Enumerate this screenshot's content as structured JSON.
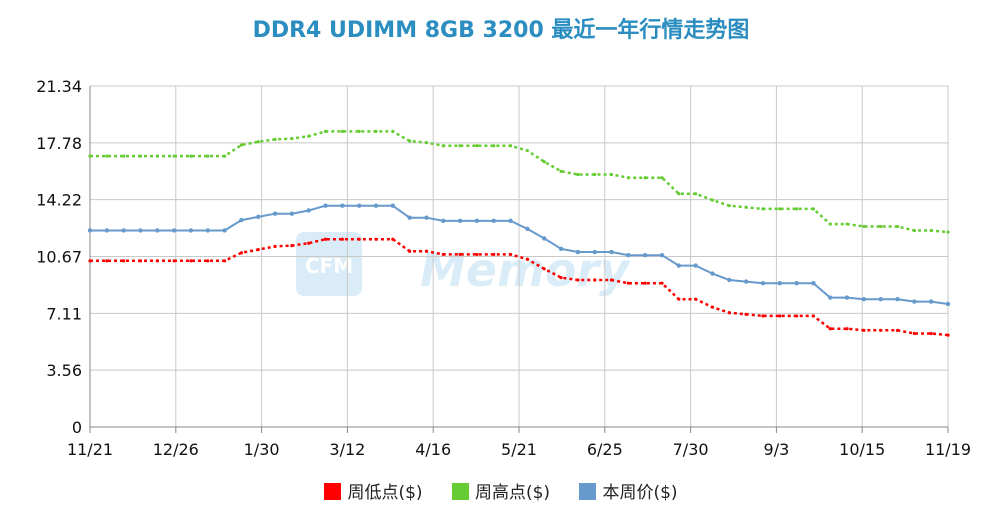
{
  "chart_data": {
    "type": "line",
    "title": "DDR4 UDIMM 8GB 3200 最近一年行情走势图",
    "xlabel": "",
    "ylabel": "",
    "ylim": [
      0,
      21.34
    ],
    "yticks": [
      "0",
      "3.56",
      "7.11",
      "10.67",
      "14.22",
      "17.78",
      "21.34"
    ],
    "xticks": [
      "11/21",
      "12/26",
      "1/30",
      "3/12",
      "4/16",
      "5/21",
      "6/25",
      "7/30",
      "9/3",
      "10/15",
      "11/19"
    ],
    "grid": true,
    "legend_position": "bottom",
    "watermark": "CFM Memory",
    "series": [
      {
        "name": "周低点($)",
        "color": "#ff0000",
        "style": "dotted",
        "values": [
          10.4,
          10.4,
          10.4,
          10.4,
          10.4,
          10.4,
          10.4,
          10.4,
          10.4,
          10.9,
          11.1,
          11.3,
          11.35,
          11.5,
          11.75,
          11.75,
          11.75,
          11.75,
          11.75,
          11.0,
          11.0,
          10.8,
          10.8,
          10.8,
          10.8,
          10.8,
          10.5,
          9.9,
          9.35,
          9.2,
          9.2,
          9.2,
          9.0,
          9.0,
          9.0,
          8.0,
          8.0,
          7.5,
          7.15,
          7.05,
          6.95,
          6.95,
          6.95,
          6.95,
          6.15,
          6.15,
          6.05,
          6.05,
          6.05,
          5.85,
          5.85,
          5.75
        ]
      },
      {
        "name": "周高点($)",
        "color": "#66cc33",
        "style": "dotted",
        "values": [
          16.95,
          16.95,
          16.95,
          16.95,
          16.95,
          16.95,
          16.95,
          16.95,
          16.95,
          17.65,
          17.85,
          18.0,
          18.05,
          18.2,
          18.5,
          18.5,
          18.5,
          18.5,
          18.5,
          17.9,
          17.8,
          17.6,
          17.6,
          17.6,
          17.6,
          17.6,
          17.3,
          16.6,
          16.0,
          15.8,
          15.8,
          15.8,
          15.6,
          15.6,
          15.6,
          14.6,
          14.6,
          14.2,
          13.85,
          13.75,
          13.65,
          13.65,
          13.65,
          13.65,
          12.7,
          12.7,
          12.55,
          12.55,
          12.55,
          12.3,
          12.3,
          12.2
        ]
      },
      {
        "name": "本周价($)",
        "color": "#6699cc",
        "style": "solid",
        "values": [
          12.3,
          12.3,
          12.3,
          12.3,
          12.3,
          12.3,
          12.3,
          12.3,
          12.3,
          12.95,
          13.15,
          13.35,
          13.35,
          13.55,
          13.85,
          13.85,
          13.85,
          13.85,
          13.85,
          13.1,
          13.1,
          12.9,
          12.9,
          12.9,
          12.9,
          12.9,
          12.4,
          11.8,
          11.15,
          10.95,
          10.95,
          10.95,
          10.75,
          10.75,
          10.75,
          10.1,
          10.1,
          9.6,
          9.2,
          9.1,
          9.0,
          9.0,
          9.0,
          9.0,
          8.1,
          8.1,
          8.0,
          8.0,
          8.0,
          7.85,
          7.85,
          7.7
        ]
      }
    ]
  }
}
